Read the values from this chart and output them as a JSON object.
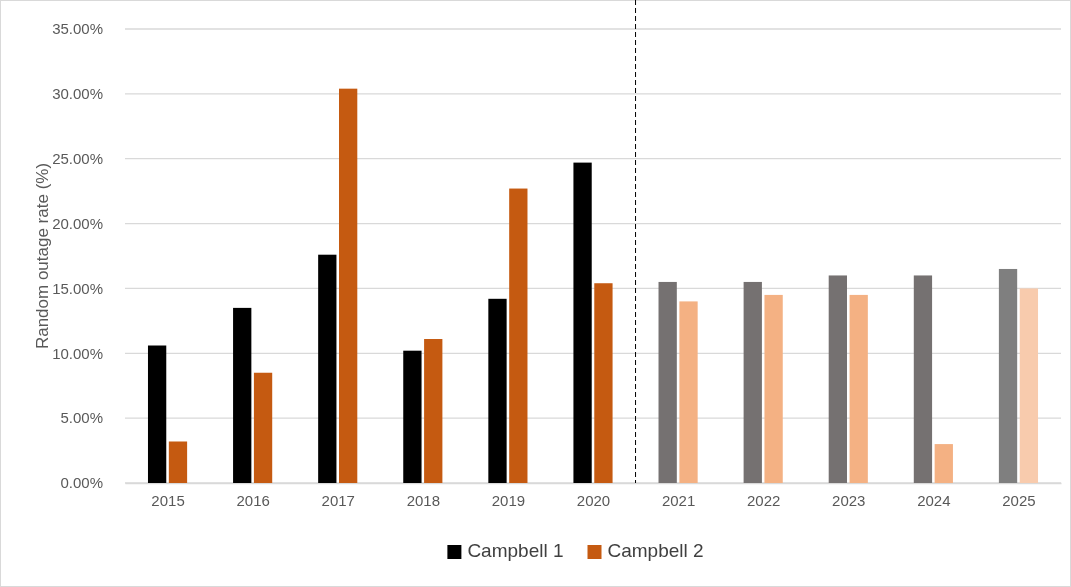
{
  "chart_data": {
    "type": "bar",
    "ylabel": "Random outage rate (%)",
    "x": [
      2015,
      2016,
      2017,
      2018,
      2019,
      2020,
      2021,
      2022,
      2023,
      2024,
      2025
    ],
    "xlim": [
      2014.5,
      2025.5
    ],
    "xticks": [
      2015,
      2016,
      2017,
      2018,
      2019,
      2020,
      2021,
      2022,
      2023,
      2024,
      2025
    ],
    "series": [
      {
        "name": "Campbell 1",
        "color": "#000000",
        "colors": [
          "#000000",
          "#000000",
          "#000000",
          "#000000",
          "#000000",
          "#000000",
          "#757171",
          "#757171",
          "#757171",
          "#757171",
          "#7f7f7f"
        ],
        "values": [
          10.6,
          13.5,
          17.6,
          10.2,
          14.2,
          24.7,
          15.5,
          15.5,
          16.0,
          16.0,
          16.5
        ]
      },
      {
        "name": "Campbell 2",
        "color": "#c55a11",
        "colors": [
          "#c55a11",
          "#c55a11",
          "#c55a11",
          "#c55a11",
          "#c55a11",
          "#c55a11",
          "#f4b183",
          "#f4b183",
          "#f4b183",
          "#f4b183",
          "#f8cbad"
        ],
        "values": [
          3.2,
          8.5,
          30.4,
          11.1,
          22.7,
          15.4,
          14.0,
          14.5,
          14.5,
          3.0,
          15.0
        ]
      }
    ],
    "ylim": [
      0,
      35
    ],
    "yticks": [
      {
        "value": 0,
        "label": "0.00%"
      },
      {
        "value": 5,
        "label": "5.00%"
      },
      {
        "value": 10,
        "label": "10.00%"
      },
      {
        "value": 15,
        "label": "15.00%"
      },
      {
        "value": 20,
        "label": "20.00%"
      },
      {
        "value": 25,
        "label": "25.00%"
      },
      {
        "value": 30,
        "label": "30.00%"
      },
      {
        "value": 35,
        "label": "35.00%"
      }
    ],
    "ref_lines": [
      {
        "axis": "x",
        "value": 2020.5,
        "color": "#000000",
        "line_style": "dashed"
      }
    ],
    "grid": "y",
    "legend": "bottom"
  }
}
